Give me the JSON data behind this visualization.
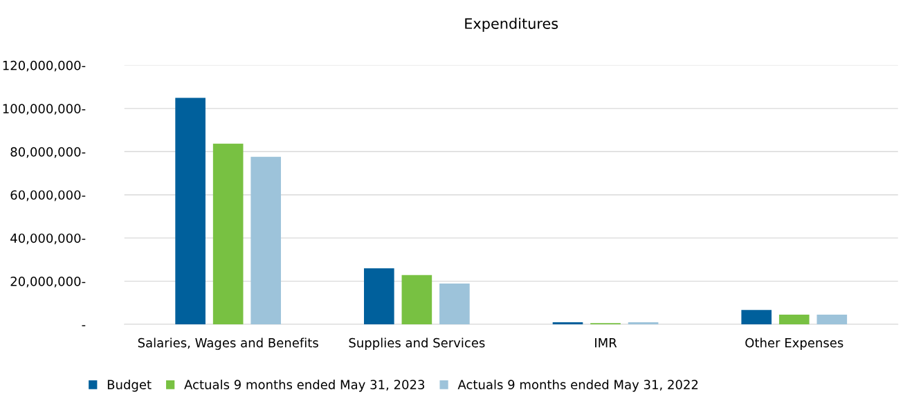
{
  "chart_data": {
    "type": "bar",
    "title": "Expenditures",
    "categories": [
      "Salaries, Wages and Benefits",
      "Supplies and Services",
      "IMR",
      "Other Expenses"
    ],
    "series": [
      {
        "name": "Budget",
        "color": "#00609c",
        "values": [
          104900000,
          26000000,
          1000000,
          6700000
        ]
      },
      {
        "name": "Actuals 9 months ended May 31, 2023",
        "color": "#78c142",
        "values": [
          83700000,
          22800000,
          600000,
          4500000
        ]
      },
      {
        "name": "Actuals 9 months ended May 31, 2022",
        "color": "#9dc3da",
        "values": [
          77600000,
          18900000,
          1000000,
          4500000
        ]
      }
    ],
    "ylim": [
      0,
      120000000
    ],
    "yticks": [
      {
        "value": 0,
        "label": "-"
      },
      {
        "value": 20000000,
        "label": "20,000,000-"
      },
      {
        "value": 40000000,
        "label": "40,000,000-"
      },
      {
        "value": 60000000,
        "label": "60,000,000-"
      },
      {
        "value": 80000000,
        "label": "80,000,000-"
      },
      {
        "value": 100000000,
        "label": "100,000,000-"
      },
      {
        "value": 120000000,
        "label": "120,000,000-"
      }
    ],
    "grid": "y",
    "legend": "bottom"
  }
}
